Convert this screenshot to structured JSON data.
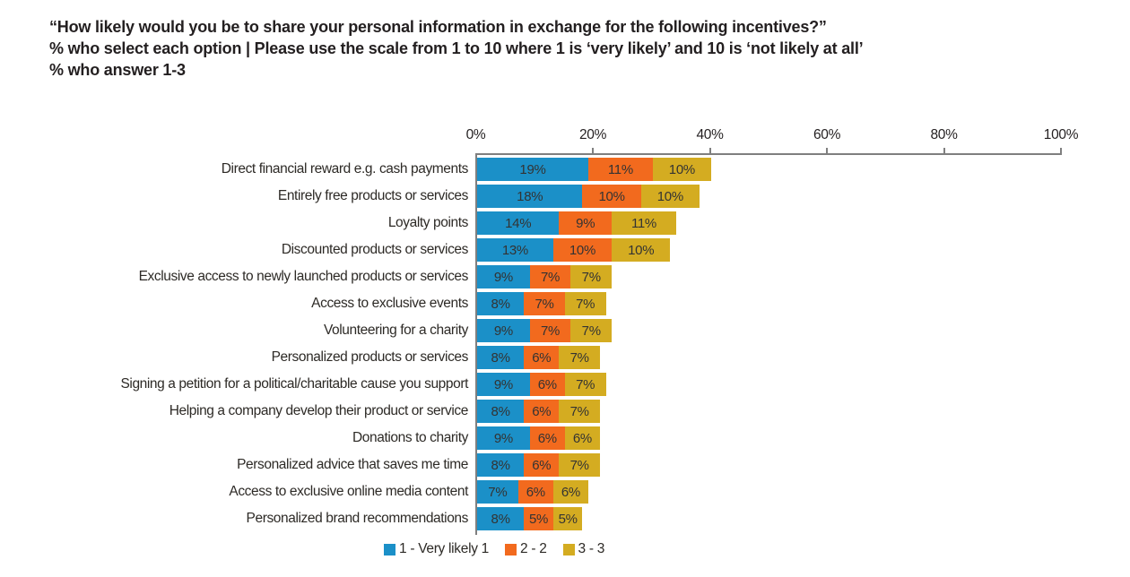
{
  "title": {
    "line1": "“How likely would you be to share your personal information in exchange for the following incentives?”",
    "line2": "% who select each option | Please use the scale from 1 to 10 where 1 is ‘very likely’ and 10 is ‘not likely at all’",
    "line3": "% who answer 1-3"
  },
  "colors": {
    "series_1_blue": "#1B90C8",
    "series_2_orange": "#F26A1E",
    "series_3_gold": "#D4AC21",
    "axis_line": "#7F7F7F",
    "title_text": "#231F20",
    "label_text": "#2D2A26",
    "bar_value_text": "#333333"
  },
  "chart_data": {
    "type": "bar",
    "orientation": "horizontal",
    "stacked": true,
    "axis_position": "top",
    "grid": false,
    "legend_position": "bottom",
    "xlim": [
      0,
      100
    ],
    "x_tick_labels": [
      "0%",
      "20%",
      "40%",
      "60%",
      "80%",
      "100%"
    ],
    "value_suffix": "%",
    "categories": [
      "Direct financial reward e.g. cash payments",
      "Entirely free products or services",
      "Loyalty points",
      "Discounted products or services",
      "Exclusive access to newly launched products or services",
      "Access to exclusive events",
      "Volunteering for a charity",
      "Personalized products or services",
      "Signing a petition for a political/charitable cause you support",
      "Helping a company develop their product or service",
      "Donations to charity",
      "Personalized advice that saves me time",
      "Access to exclusive online media content",
      "Personalized brand recommendations"
    ],
    "series": [
      {
        "name": "1 - Very likely 1",
        "color": "#1B90C8",
        "values": [
          19,
          18,
          14,
          13,
          9,
          8,
          9,
          8,
          9,
          8,
          9,
          8,
          7,
          8
        ]
      },
      {
        "name": "2 - 2",
        "color": "#F26A1E",
        "values": [
          11,
          10,
          9,
          10,
          7,
          7,
          7,
          6,
          6,
          6,
          6,
          6,
          6,
          5
        ]
      },
      {
        "name": "3 - 3",
        "color": "#D4AC21",
        "values": [
          10,
          10,
          11,
          10,
          7,
          7,
          7,
          7,
          7,
          7,
          6,
          7,
          6,
          5
        ]
      }
    ]
  }
}
